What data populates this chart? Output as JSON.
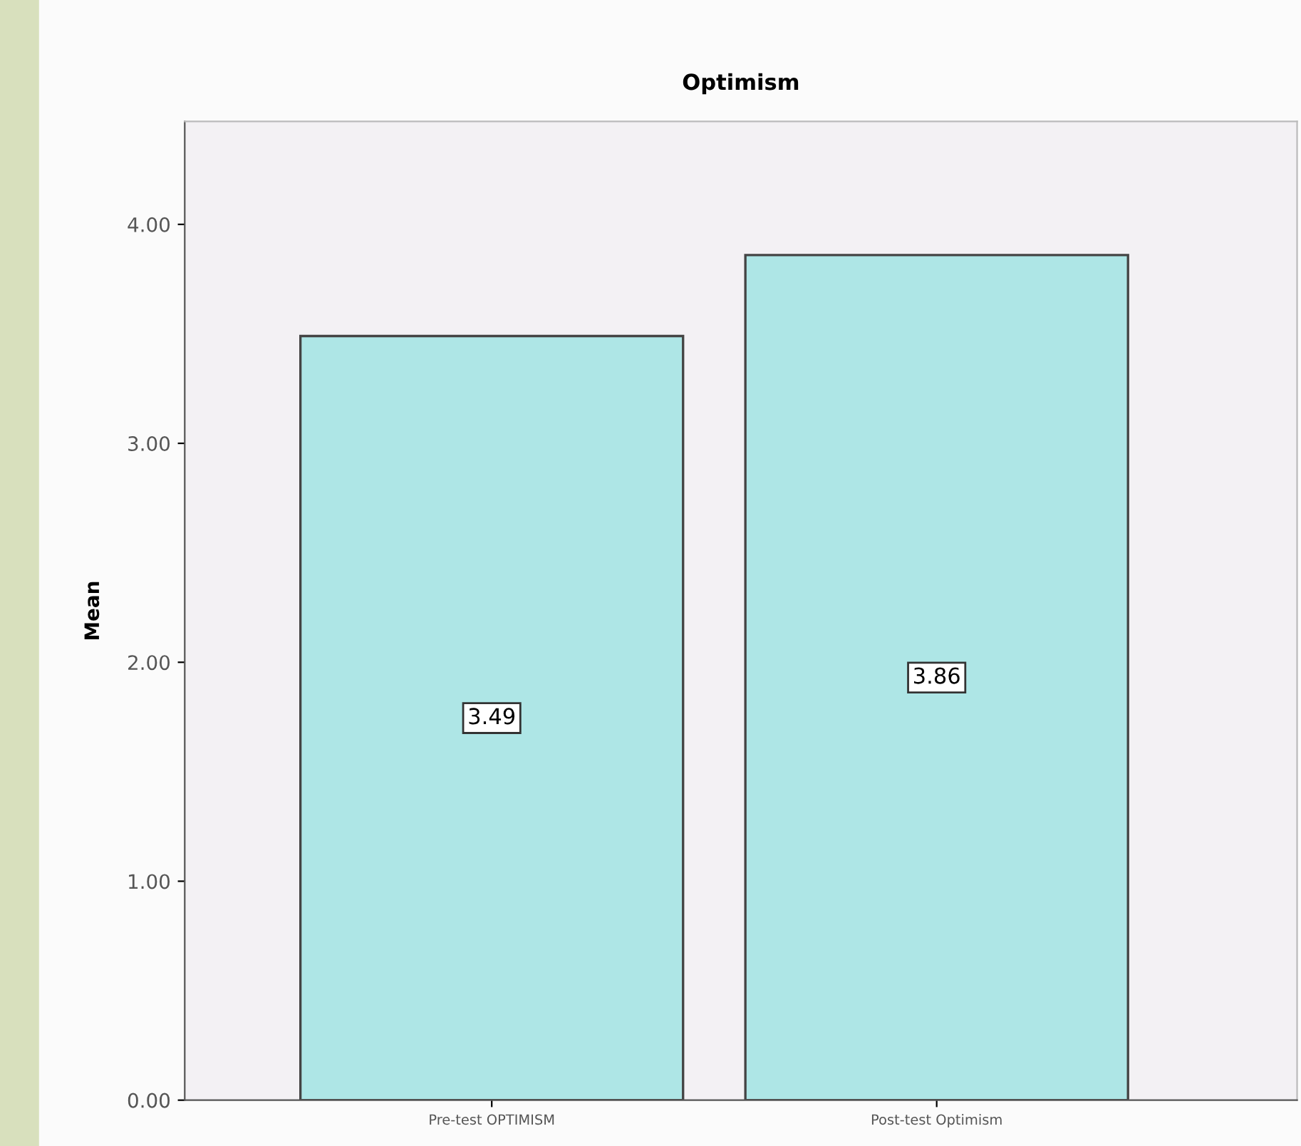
{
  "chart_data": {
    "type": "bar",
    "title": "Optimism",
    "ylabel": "Mean",
    "categories": [
      "Pre-test OPTIMISM",
      "Post-test Optimism"
    ],
    "values": [
      3.49,
      3.86
    ],
    "color": "#aee6e6",
    "ylim": [
      0,
      4.47
    ],
    "yticks": [
      {
        "value": 0,
        "label": "0.00"
      },
      {
        "value": 1,
        "label": "1.00"
      },
      {
        "value": 2,
        "label": "2.00"
      },
      {
        "value": 3,
        "label": "3.00"
      },
      {
        "value": 4,
        "label": "4.00"
      }
    ],
    "data_labels": true,
    "grid": false
  }
}
